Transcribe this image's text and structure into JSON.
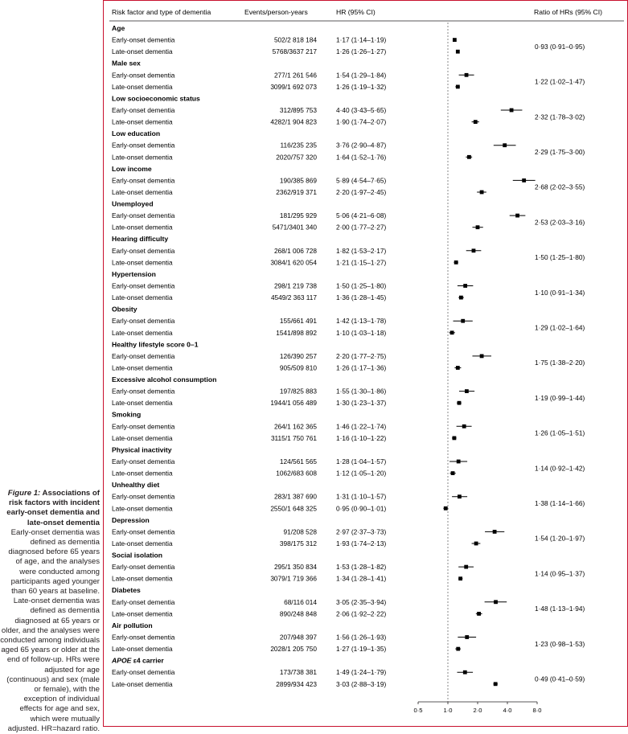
{
  "caption": {
    "title_prefix": "Figure 1:",
    "title_rest": " Associations of risk factors with incident early-onset dementia and late-onset dementia",
    "body": "Early-onset dementia was defined as dementia diagnosed before 65 years of age, and the analyses were conducted among participants aged younger than 60 years at baseline. Late-onset dementia was defined as dementia diagnosed at 65 years or older, and the analyses were conducted among individuals aged 65 years or older at the end of follow-up. HRs were adjusted for age (continuous) and sex (male or female), with the exception of individual effects for age and sex, which were mutually adjusted. HR=hazard ratio."
  },
  "colors": {
    "frame": "#c8102e",
    "text": "#231f20",
    "marker": "#000000",
    "refline": "#555555"
  },
  "chart_data": {
    "type": "forest",
    "headers": [
      "Risk factor and type of dementia",
      "Events/person-years",
      "HR (95% CI)",
      "Ratio of HRs (95% CI)"
    ],
    "x_axis": {
      "scale": "log",
      "ticks": [
        0.5,
        1.0,
        2.0,
        4.0,
        8.0
      ],
      "tick_labels": [
        "0·5",
        "1·0",
        "2·0",
        "4·0",
        "8·0"
      ],
      "range": [
        0.5,
        8.0
      ],
      "reference": 1.0
    },
    "groups": [
      {
        "name": "Age",
        "ratio": "0·93 (0·91–0·95)",
        "rows": [
          {
            "label": "Early-onset dementia",
            "events": "502/2 818 184",
            "hr_text": "1·17 (1·14–1·19)",
            "hr": 1.17,
            "lo": 1.14,
            "hi": 1.19
          },
          {
            "label": "Late-onset dementia",
            "events": "5768/3637 217",
            "hr_text": "1·26 (1·26–1·27)",
            "hr": 1.26,
            "lo": 1.26,
            "hi": 1.27
          }
        ]
      },
      {
        "name": "Male sex",
        "ratio": "1·22 (1·02–1·47)",
        "rows": [
          {
            "label": "Early-onset dementia",
            "events": "277/1 261 546",
            "hr_text": "1·54 (1·29–1·84)",
            "hr": 1.54,
            "lo": 1.29,
            "hi": 1.84
          },
          {
            "label": "Late-onset dementia",
            "events": "3099/1 692 073",
            "hr_text": "1·26 (1·19–1·32)",
            "hr": 1.26,
            "lo": 1.19,
            "hi": 1.32
          }
        ]
      },
      {
        "name": "Low socioeconomic status",
        "ratio": "2·32 (1·78–3·02)",
        "rows": [
          {
            "label": "Early-onset dementia",
            "events": "312/895 753",
            "hr_text": "4·40 (3·43–5·65)",
            "hr": 4.4,
            "lo": 3.43,
            "hi": 5.65
          },
          {
            "label": "Late-onset dementia",
            "events": "4282/1 904 823",
            "hr_text": "1·90 (1·74–2·07)",
            "hr": 1.9,
            "lo": 1.74,
            "hi": 2.07
          }
        ]
      },
      {
        "name": "Low education",
        "ratio": "2·29 (1·75–3·00)",
        "rows": [
          {
            "label": "Early-onset dementia",
            "events": "116/235 235",
            "hr_text": "3·76 (2·90–4·87)",
            "hr": 3.76,
            "lo": 2.9,
            "hi": 4.87
          },
          {
            "label": "Late-onset dementia",
            "events": "2020/757 320",
            "hr_text": "1·64 (1·52–1·76)",
            "hr": 1.64,
            "lo": 1.52,
            "hi": 1.76
          }
        ]
      },
      {
        "name": "Low income",
        "ratio": "2·68 (2·02–3·55)",
        "rows": [
          {
            "label": "Early-onset dementia",
            "events": "190/385 869",
            "hr_text": "5·89 (4·54–7·65)",
            "hr": 5.89,
            "lo": 4.54,
            "hi": 7.65
          },
          {
            "label": "Late-onset dementia",
            "events": "2362/919 371",
            "hr_text": "2·20 (1·97–2·45)",
            "hr": 2.2,
            "lo": 1.97,
            "hi": 2.45
          }
        ]
      },
      {
        "name": "Unemployed",
        "ratio": "2·53 (2·03–3·16)",
        "rows": [
          {
            "label": "Early-onset dementia",
            "events": "181/295 929",
            "hr_text": "5·06 (4·21–6·08)",
            "hr": 5.06,
            "lo": 4.21,
            "hi": 6.08
          },
          {
            "label": "Late-onset dementia",
            "events": "5471/3401 340",
            "hr_text": "2·00 (1·77–2·27)",
            "hr": 2.0,
            "lo": 1.77,
            "hi": 2.27
          }
        ]
      },
      {
        "name": "Hearing difficulty",
        "ratio": "1·50 (1·25–1·80)",
        "rows": [
          {
            "label": "Early-onset dementia",
            "events": "268/1 006 728",
            "hr_text": "1·82 (1·53–2·17)",
            "hr": 1.82,
            "lo": 1.53,
            "hi": 2.17
          },
          {
            "label": "Late-onset dementia",
            "events": "3084/1 620 054",
            "hr_text": "1·21 (1·15–1·27)",
            "hr": 1.21,
            "lo": 1.15,
            "hi": 1.27
          }
        ]
      },
      {
        "name": "Hypertension",
        "ratio": "1·10 (0·91–1·34)",
        "rows": [
          {
            "label": "Early-onset dementia",
            "events": "298/1 219 738",
            "hr_text": "1·50 (1·25–1·80)",
            "hr": 1.5,
            "lo": 1.25,
            "hi": 1.8
          },
          {
            "label": "Late-onset dementia",
            "events": "4549/2 363 117",
            "hr_text": "1·36 (1·28–1·45)",
            "hr": 1.36,
            "lo": 1.28,
            "hi": 1.45
          }
        ]
      },
      {
        "name": "Obesity",
        "ratio": "1·29 (1·02–1·64)",
        "rows": [
          {
            "label": "Early-onset dementia",
            "events": "155/661 491",
            "hr_text": "1·42 (1·13–1·78)",
            "hr": 1.42,
            "lo": 1.13,
            "hi": 1.78
          },
          {
            "label": "Late-onset dementia",
            "events": "1541/898 892",
            "hr_text": "1·10 (1·03–1·18)",
            "hr": 1.1,
            "lo": 1.03,
            "hi": 1.18
          }
        ]
      },
      {
        "name": "Healthy lifestyle score 0–1",
        "ratio": "1·75 (1·38–2·20)",
        "rows": [
          {
            "label": "Early-onset dementia",
            "events": "126/390 257",
            "hr_text": "2·20 (1·77–2·75)",
            "hr": 2.2,
            "lo": 1.77,
            "hi": 2.75
          },
          {
            "label": "Late-onset dementia",
            "events": "905/509 810",
            "hr_text": "1·26 (1·17–1·36)",
            "hr": 1.26,
            "lo": 1.17,
            "hi": 1.36
          }
        ]
      },
      {
        "name": "Excessive alcohol consumption",
        "ratio": "1·19 (0·99–1·44)",
        "rows": [
          {
            "label": "Early-onset dementia",
            "events": "197/825 883",
            "hr_text": "1·55 (1·30–1·86)",
            "hr": 1.55,
            "lo": 1.3,
            "hi": 1.86
          },
          {
            "label": "Late-onset dementia",
            "events": "1944/1 056 489",
            "hr_text": "1·30 (1·23–1·37)",
            "hr": 1.3,
            "lo": 1.23,
            "hi": 1.37
          }
        ]
      },
      {
        "name": "Smoking",
        "ratio": "1·26 (1·05–1·51)",
        "rows": [
          {
            "label": "Early-onset dementia",
            "events": "264/1 162 365",
            "hr_text": "1·46 (1·22–1·74)",
            "hr": 1.46,
            "lo": 1.22,
            "hi": 1.74
          },
          {
            "label": "Late-onset dementia",
            "events": "3115/1 750 761",
            "hr_text": "1·16 (1·10–1·22)",
            "hr": 1.16,
            "lo": 1.1,
            "hi": 1.22
          }
        ]
      },
      {
        "name": "Physical inactivity",
        "ratio": "1·14 (0·92–1·42)",
        "rows": [
          {
            "label": "Early-onset dementia",
            "events": "124/561 565",
            "hr_text": "1·28 (1·04–1·57)",
            "hr": 1.28,
            "lo": 1.04,
            "hi": 1.57
          },
          {
            "label": "Late-onset dementia",
            "events": "1062/683 608",
            "hr_text": "1·12 (1·05–1·20)",
            "hr": 1.12,
            "lo": 1.05,
            "hi": 1.2
          }
        ]
      },
      {
        "name": "Unhealthy diet",
        "ratio": "1·38 (1·14–1·66)",
        "rows": [
          {
            "label": "Early-onset dementia",
            "events": "283/1 387 690",
            "hr_text": "1·31 (1·10–1·57)",
            "hr": 1.31,
            "lo": 1.1,
            "hi": 1.57
          },
          {
            "label": "Late-onset dementia",
            "events": "2550/1 648 325",
            "hr_text": "0·95 (0·90–1·01)",
            "hr": 0.95,
            "lo": 0.9,
            "hi": 1.01
          }
        ]
      },
      {
        "name": "Depression",
        "ratio": "1·54 (1·20–1·97)",
        "rows": [
          {
            "label": "Early-onset dementia",
            "events": "91/208 528",
            "hr_text": "2·97 (2·37–3·73)",
            "hr": 2.97,
            "lo": 2.37,
            "hi": 3.73
          },
          {
            "label": "Late-onset dementia",
            "events": "398/175 312",
            "hr_text": "1·93 (1·74–2·13)",
            "hr": 1.93,
            "lo": 1.74,
            "hi": 2.13
          }
        ]
      },
      {
        "name": "Social isolation",
        "ratio": "1·14 (0·95–1·37)",
        "rows": [
          {
            "label": "Early-onset dementia",
            "events": "295/1 350 834",
            "hr_text": "1·53 (1·28–1·82)",
            "hr": 1.53,
            "lo": 1.28,
            "hi": 1.82
          },
          {
            "label": "Late-onset dementia",
            "events": "3079/1 719 366",
            "hr_text": "1·34 (1·28–1·41)",
            "hr": 1.34,
            "lo": 1.28,
            "hi": 1.41
          }
        ]
      },
      {
        "name": "Diabetes",
        "ratio": "1·48 (1·13–1·94)",
        "rows": [
          {
            "label": "Early-onset dementia",
            "events": "68/116 014",
            "hr_text": "3·05 (2·35–3·94)",
            "hr": 3.05,
            "lo": 2.35,
            "hi": 3.94
          },
          {
            "label": "Late-onset dementia",
            "events": "890/248 848",
            "hr_text": "2·06 (1·92–2·22)",
            "hr": 2.06,
            "lo": 1.92,
            "hi": 2.22
          }
        ]
      },
      {
        "name": "Air pollution",
        "ratio": "1·23 (0·98–1·53)",
        "rows": [
          {
            "label": "Early-onset dementia",
            "events": "207/948 397",
            "hr_text": "1·56 (1·26–1·93)",
            "hr": 1.56,
            "lo": 1.26,
            "hi": 1.93
          },
          {
            "label": "Late-onset dementia",
            "events": "2028/1 205 750",
            "hr_text": "1·27 (1·19–1·35)",
            "hr": 1.27,
            "lo": 1.19,
            "hi": 1.35
          }
        ]
      },
      {
        "name_italic": "APOE",
        "name": " ε4 carrier",
        "ratio": "0·49 (0·41–0·59)",
        "rows": [
          {
            "label": "Early-onset dementia",
            "events": "173/738 381",
            "hr_text": "1·49 (1·24–1·79)",
            "hr": 1.49,
            "lo": 1.24,
            "hi": 1.79
          },
          {
            "label": "Late-onset dementia",
            "events": "2899/934 423",
            "hr_text": "3·03 (2·88–3·19)",
            "hr": 3.03,
            "lo": 2.88,
            "hi": 3.19
          }
        ]
      }
    ]
  }
}
